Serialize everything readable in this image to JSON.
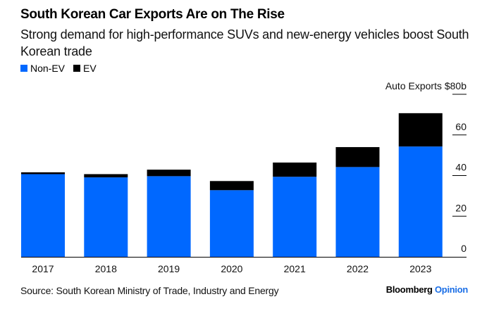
{
  "header": {
    "title": "South Korean Car Exports Are on The Rise",
    "subtitle": "Strong demand for high-performance SUVs and new-energy vehicles boost South Korean trade"
  },
  "footer": {
    "source": "Source: South Korean Ministry of Trade, Industry and Energy",
    "brand_main": "Bloomberg",
    "brand_accent": "Opinion"
  },
  "colors": {
    "non_ev": "#0068FF",
    "ev": "#000000",
    "brand_accent": "#1a6ee6"
  },
  "chart_data": {
    "type": "bar",
    "stacked": true,
    "title": "South Korean Car Exports Are on The Rise",
    "subtitle": "Strong demand for high-performance SUVs and new-energy vehicles boost South Korean trade",
    "xlabel": "",
    "ylabel": "Auto Exports $80b",
    "y_axis_position": "right",
    "ylim": [
      0,
      80
    ],
    "yticks": [
      0,
      20,
      40,
      60,
      80
    ],
    "ytick_labels": [
      "0",
      "20",
      "40",
      "60",
      "Auto Exports $80b"
    ],
    "categories": [
      "2017",
      "2018",
      "2019",
      "2020",
      "2021",
      "2022",
      "2023"
    ],
    "series": [
      {
        "name": "Non-EV",
        "color": "#0068FF",
        "values": [
          40.7,
          39.1,
          39.7,
          32.8,
          39.4,
          44.2,
          54.3
        ]
      },
      {
        "name": "EV",
        "color": "#000000",
        "values": [
          0.9,
          1.6,
          3.2,
          4.5,
          7.0,
          9.8,
          16.4
        ]
      }
    ],
    "legend": {
      "position": "top-left",
      "entries": [
        "Non-EV",
        "EV"
      ]
    },
    "grid": false
  }
}
